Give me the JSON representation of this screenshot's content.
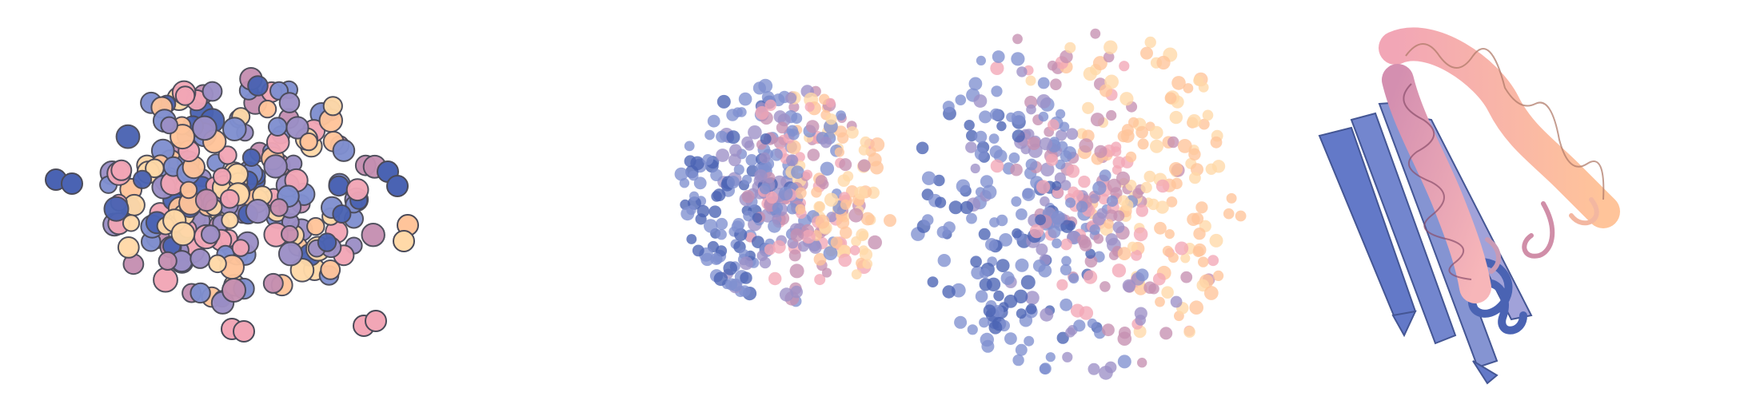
{
  "figure": {
    "panels": [
      {
        "id": "sphere-cloud-bold",
        "description_name": "outlined-sphere-cluster"
      },
      {
        "id": "sphere-cloud-soft-compact",
        "description_name": "soft-sphere-cluster-compact"
      },
      {
        "id": "sphere-cloud-soft-wide",
        "description_name": "soft-sphere-cluster-wide"
      },
      {
        "id": "protein-ribbon",
        "description_name": "protein-ribbon-structure"
      }
    ],
    "colors": {
      "blue": "#4a63b3",
      "periwinkle": "#7f8fd0",
      "lavender": "#9c8fc6",
      "mauve": "#c58fb1",
      "pink": "#f2a6b6",
      "peach": "#ffc49a",
      "cream": "#ffd9a8",
      "outline": "#4a4a58"
    }
  }
}
